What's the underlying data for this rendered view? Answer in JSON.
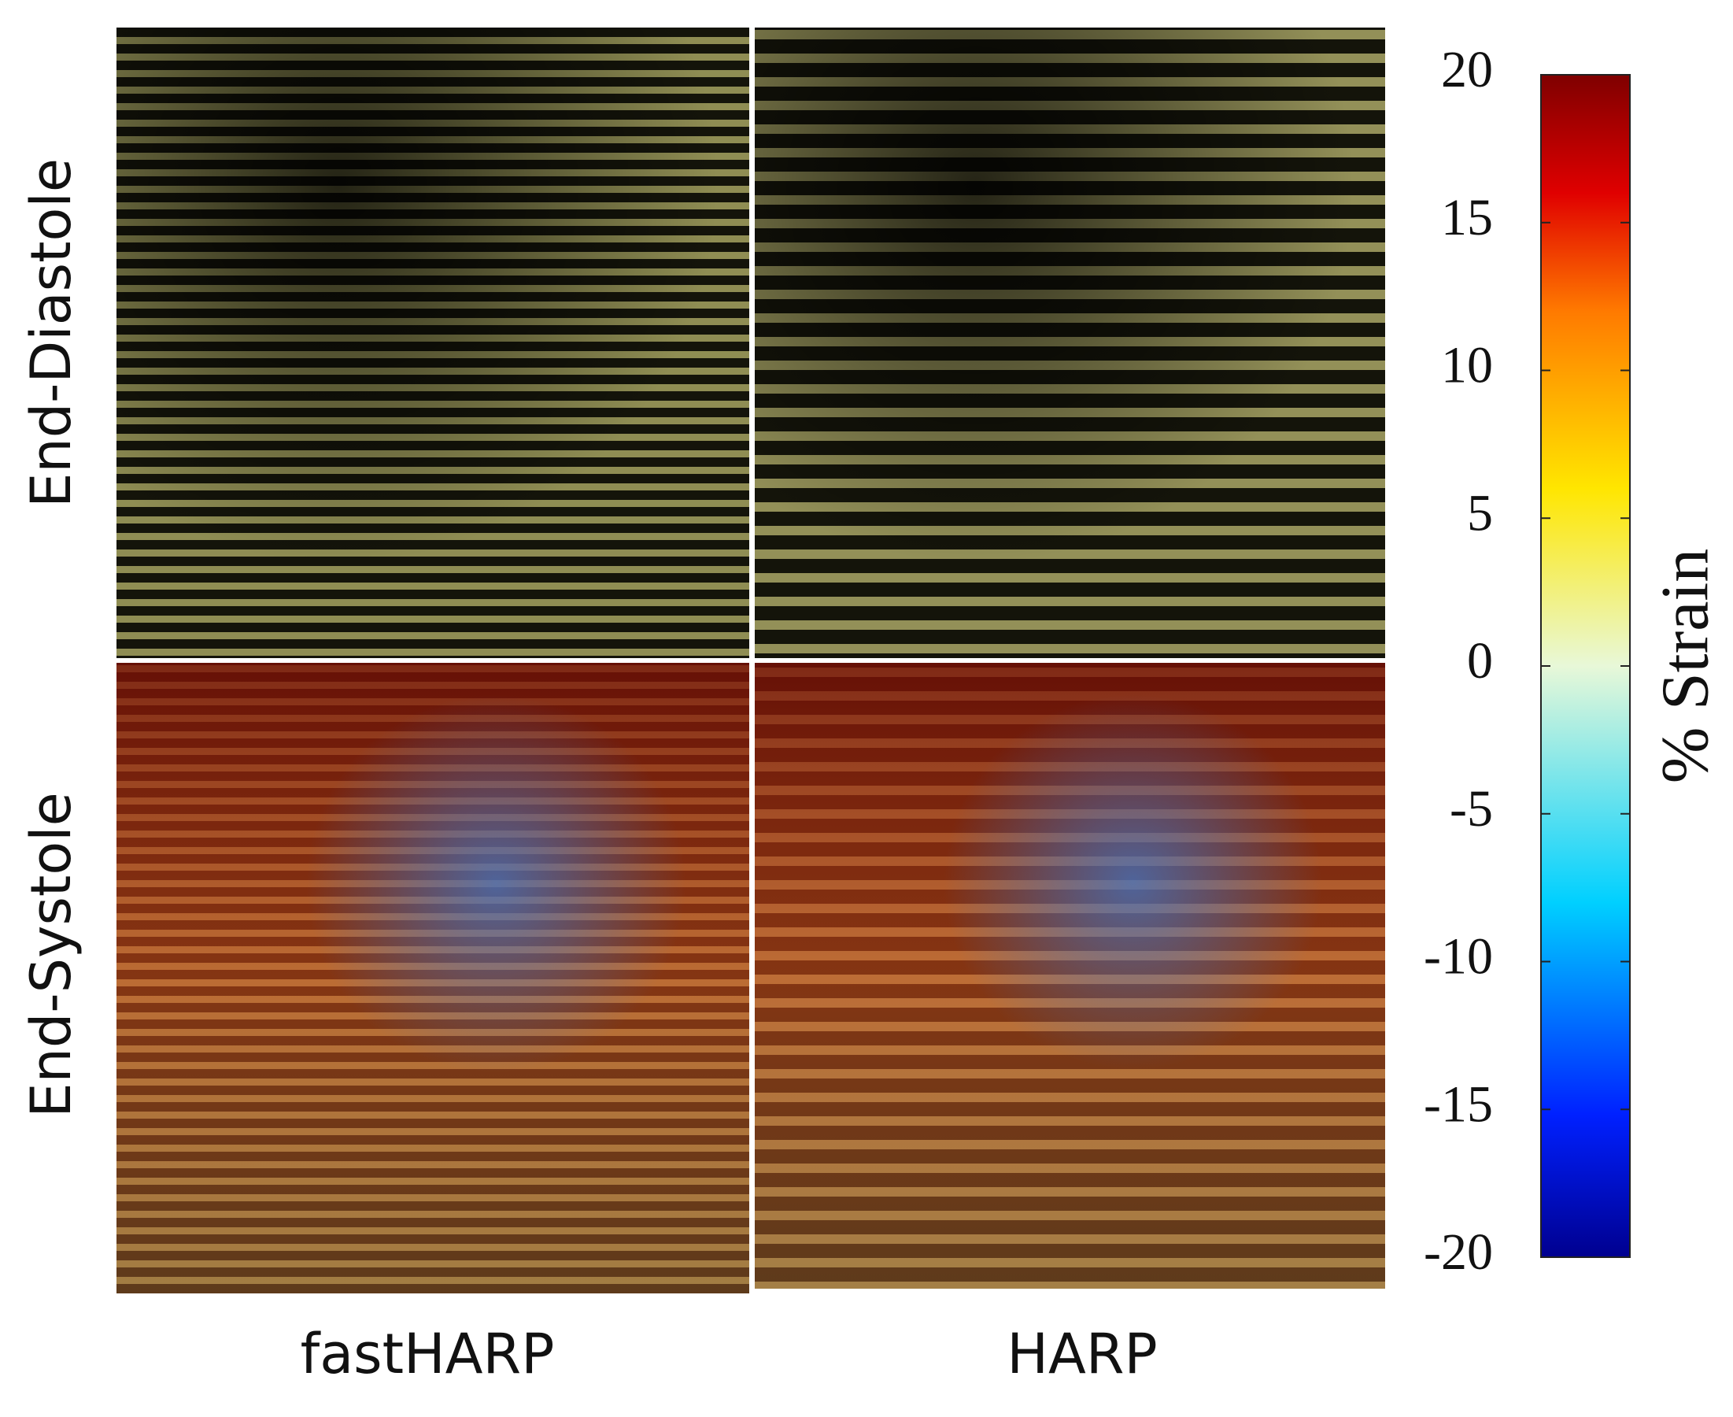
{
  "row_labels": [
    "End-Diastole",
    "End-Systole"
  ],
  "column_labels": [
    "fastHARP",
    "HARP"
  ],
  "colorbar": {
    "label": "% Strain",
    "lim": [
      -20,
      20
    ],
    "ticks": [
      20,
      15,
      10,
      5,
      0,
      -5,
      -10,
      -15,
      -20
    ]
  }
}
